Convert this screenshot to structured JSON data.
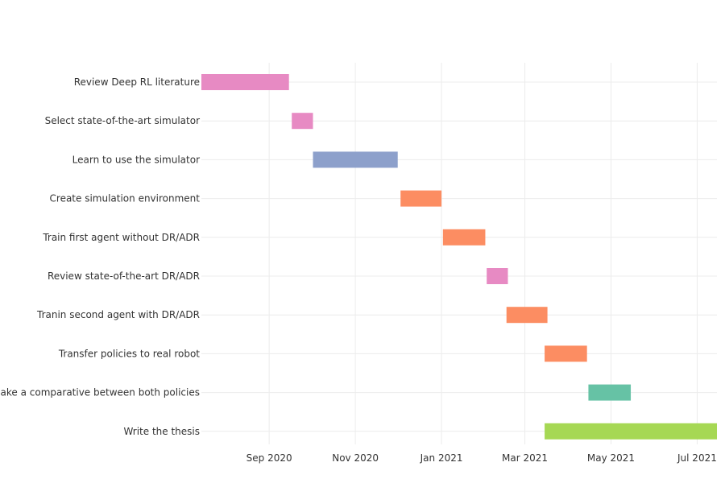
{
  "chart_data": {
    "type": "gantt",
    "title": "",
    "xlabel": "",
    "ylabel": "",
    "x_ticks": [
      {
        "date": "2020-09-01",
        "label": "Sep 2020"
      },
      {
        "date": "2020-11-01",
        "label": "Nov 2020"
      },
      {
        "date": "2021-01-01",
        "label": "Jan 2021"
      },
      {
        "date": "2021-03-01",
        "label": "Mar 2021"
      },
      {
        "date": "2021-05-01",
        "label": "May 2021"
      },
      {
        "date": "2021-07-01",
        "label": "Jul 2021"
      }
    ],
    "xlim": [
      "2020-07-15",
      "2021-07-15"
    ],
    "grid": true,
    "legend": "none",
    "tasks": [
      {
        "name": "Review Deep RL literature",
        "start": "2020-07-15",
        "end": "2020-09-15",
        "color": "#e78ac3"
      },
      {
        "name": "Select state-of-the-art simulator",
        "start": "2020-09-17",
        "end": "2020-10-02",
        "color": "#e78ac3"
      },
      {
        "name": "Learn to use the simulator",
        "start": "2020-10-02",
        "end": "2020-12-01",
        "color": "#8da0cb"
      },
      {
        "name": "Create simulation environment",
        "start": "2020-12-03",
        "end": "2021-01-01",
        "color": "#fc8d62"
      },
      {
        "name": "Train first agent without DR/ADR",
        "start": "2021-01-02",
        "end": "2021-02-01",
        "color": "#fc8d62"
      },
      {
        "name": "Review state-of-the-art DR/ADR",
        "start": "2021-02-02",
        "end": "2021-02-17",
        "color": "#e78ac3"
      },
      {
        "name": "Tranin second agent with DR/ADR",
        "start": "2021-02-16",
        "end": "2021-03-17",
        "color": "#fc8d62"
      },
      {
        "name": "Transfer policies to real robot",
        "start": "2021-03-15",
        "end": "2021-04-14",
        "color": "#fc8d62"
      },
      {
        "name": "Make a comparative between both policies",
        "start": "2021-04-15",
        "end": "2021-05-15",
        "color": "#66c2a5"
      },
      {
        "name": "Write the thesis",
        "start": "2021-03-15",
        "end": "2021-07-15",
        "color": "#a6d854"
      }
    ]
  }
}
